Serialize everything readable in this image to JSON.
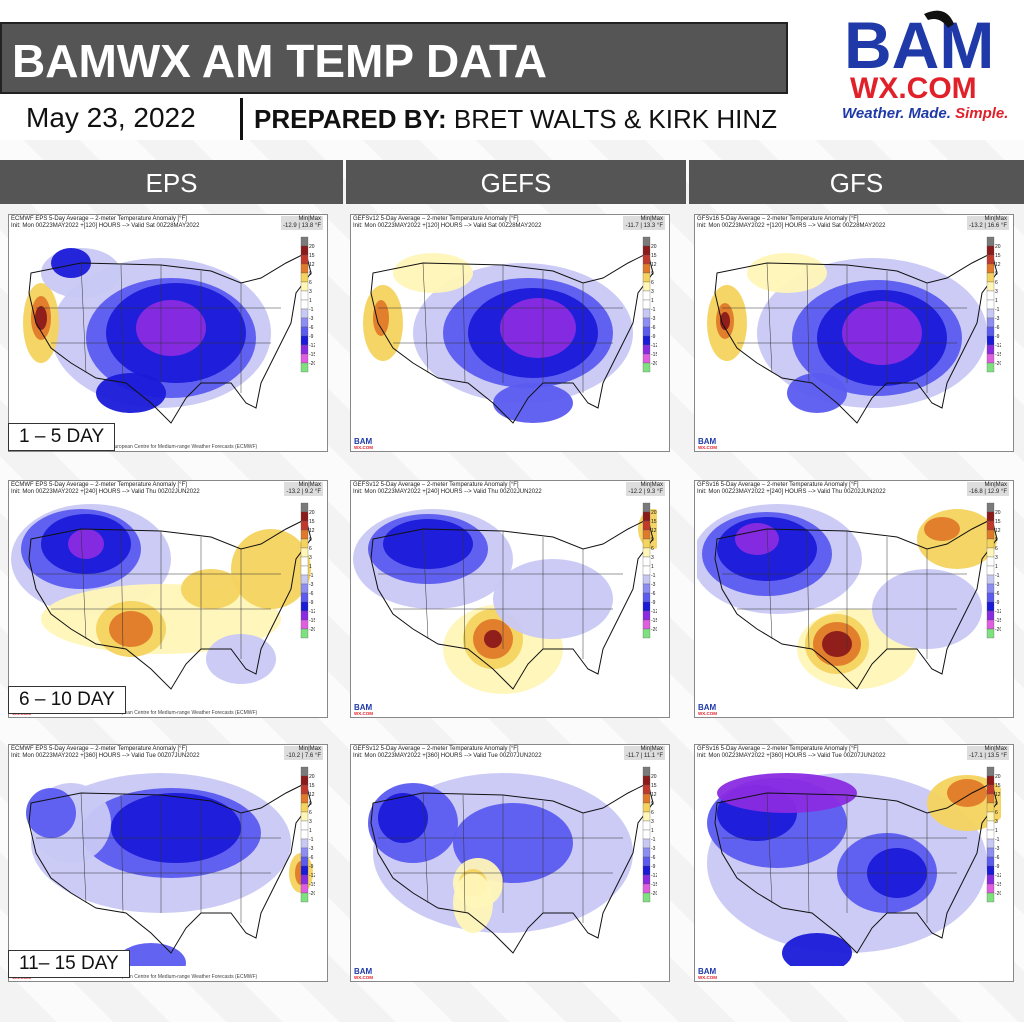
{
  "header": {
    "title": "BAMWX AM TEMP DATA",
    "date": "May 23, 2022",
    "prepared_label": "PREPARED BY:",
    "prepared_names": "BRET WALTS & KIRK HINZ"
  },
  "logo": {
    "top": "BAM",
    "middle": "WX.COM",
    "tagline_a": "Weather. Made. ",
    "tagline_b": "Simple."
  },
  "columns": [
    "EPS",
    "GEFS",
    "GFS"
  ],
  "rows": [
    "1 – 5 DAY",
    "6 – 10 DAY",
    "11– 15 DAY"
  ],
  "panels": [
    {
      "title": "ECMWF EPS 5-Day Average – 2-meter Temperature Anomaly [°F]",
      "init": "Init: Mon 00Z23MAY2022 +[120] HOURS --> Valid Sat 00Z28MAY2022",
      "minmax": "-12.9 | 13.8 °F",
      "footer": "This service is based on data European Centre for Medium-range Weather Forecasts (ECMWF)"
    },
    {
      "title": "GEFSv12 5-Day Average – 2-meter Temperature Anomaly [°F]",
      "init": "Init: Mon 00Z23MAY2022 +[120] HOURS --> Valid Sat 00Z28MAY2022",
      "minmax": "-11.7 | 13.3 °F",
      "footer": ""
    },
    {
      "title": "GFSv16 5-Day Average – 2-meter Temperature Anomaly [°F]",
      "init": "Init: Mon 00Z23MAY2022 +[120] HOURS --> Valid Sat 00Z28MAY2022",
      "minmax": "-13.2 | 16.6 °F",
      "footer": ""
    },
    {
      "title": "ECMWF EPS 5-Day Average – 2-meter Temperature Anomaly [°F]",
      "init": "Init: Mon 00Z23MAY2022 +[240] HOURS --> Valid Thu 00Z02JUN2022",
      "minmax": "-13.2 | 9.2 °F",
      "footer": "This service is based on data European Centre for Medium-range Weather Forecasts (ECMWF)"
    },
    {
      "title": "GEFSv12 5-Day Average – 2-meter Temperature Anomaly [°F]",
      "init": "Init: Mon 00Z23MAY2022 +[240] HOURS --> Valid Thu 00Z02JUN2022",
      "minmax": "-12.2 | 9.3 °F",
      "footer": ""
    },
    {
      "title": "GFSv16 5-Day Average – 2-meter Temperature Anomaly [°F]",
      "init": "Init: Mon 00Z23MAY2022 +[240] HOURS --> Valid Thu 00Z02JUN2022",
      "minmax": "-16.8 | 12.9 °F",
      "footer": ""
    },
    {
      "title": "ECMWF EPS 5-Day Average – 2-meter Temperature Anomaly [°F]",
      "init": "Init: Mon 00Z23MAY2022 +[360] HOURS --> Valid Tue 00Z07JUN2022",
      "minmax": "-10.2 | 7.6 °F",
      "footer": "This service is based on data European Centre for Medium-range Weather Forecasts (ECMWF)"
    },
    {
      "title": "GEFSv12 5-Day Average – 2-meter Temperature Anomaly [°F]",
      "init": "Init: Mon 00Z23MAY2022 +[360] HOURS --> Valid Tue 00Z07JUN2022",
      "minmax": "-11.7 | 11.1 °F",
      "footer": ""
    },
    {
      "title": "GFSv16 5-Day Average – 2-meter Temperature Anomaly [°F]",
      "init": "Init: Mon 00Z23MAY2022 +[360] HOURS --> Valid Tue 00Z07JUN2022",
      "minmax": "-17.1 | 13.5 °F",
      "footer": ""
    }
  ],
  "colorbar_ticks": [
    "20",
    "15",
    "12",
    "9",
    "6",
    "3",
    "1",
    "-1",
    "-3",
    "-6",
    "-9",
    "-12",
    "-15",
    "-20"
  ],
  "colors": {
    "header_bg": "#555555",
    "cold_strong": "#1a1ad9",
    "cold_purple": "#8a2be2",
    "cold_mid": "#5b5bf0",
    "cold_light": "#c8c8f5",
    "warm_light": "#fff6b8",
    "warm_mid": "#f4d35e",
    "warm_strong": "#e07a2a",
    "hot": "#8b1a1a",
    "logo_blue": "#1f3aa8",
    "logo_red": "#e0212a"
  }
}
